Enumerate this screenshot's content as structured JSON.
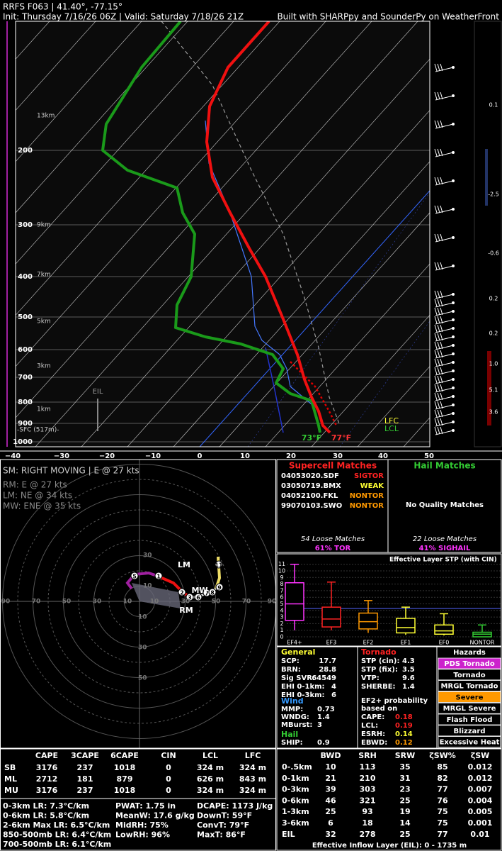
{
  "header": {
    "line1": "RRFS F063 | 41.40°, -77.15°",
    "line2": "Init: Thursday 7/16/26 06Z | Valid: Saturday 7/18/26 21Z",
    "credit": "Built with SHARPpy and SounderPy on WeatherFront"
  },
  "skewt": {
    "pressure_labels": [
      "200",
      "300",
      "400",
      "500",
      "600",
      "700",
      "800",
      "900",
      "1000"
    ],
    "height_labels": [
      "13km",
      "9km",
      "7km",
      "5km",
      "3km",
      "1km",
      "-SFC (517m)-"
    ],
    "temperature_labels": [
      "−40",
      "−30",
      "−20",
      "−10",
      "0",
      "10",
      "20",
      "30",
      "40",
      "50"
    ],
    "eil": "EIL",
    "lfc": "LFC",
    "lcl": "LCL",
    "surface_dewpoint": "73°F",
    "surface_temperature": "77°F",
    "omega_labels": [
      "0.1",
      "-2.5",
      "-0.6",
      "0.2",
      "0.2",
      "1.0",
      "5.1",
      "3.6"
    ]
  },
  "hodograph": {
    "storm_motion": "SM: RIGHT MOVING | E @ 27 kts",
    "right_mover": "RM: E @ 27 kts",
    "left_mover": "LM: NE @ 34 kts",
    "mean_wind": "MW: ENE @ 35 kts",
    "ring_labels_left": [
      "90",
      "70",
      "50",
      "30",
      "10"
    ],
    "ring_labels_right": [
      "10",
      "30",
      "50",
      "70",
      "90"
    ],
    "ring_labels_up": [
      "30",
      "10"
    ],
    "ring_labels_down": [
      "10",
      "30",
      "50"
    ],
    "markers": [
      "LM",
      "MW",
      "RM"
    ],
    "points": [
      "5",
      "1",
      "2",
      "3",
      "6",
      "7",
      "8",
      "9",
      "11"
    ]
  },
  "supercell_matches": {
    "title": "Supercell Matches",
    "rows": [
      [
        "04053020.SDF",
        "SIGTOR"
      ],
      [
        "03050719.BMX",
        "WEAK"
      ],
      [
        "04052100.FKL",
        "NONTOR"
      ],
      [
        "99070103.SWO",
        "NONTOR"
      ]
    ],
    "loose": "54 Loose Matches",
    "probability": "61% TOR"
  },
  "hail_matches": {
    "title": "Hail Matches",
    "message": "No Quality Matches",
    "loose": "22 Loose Matches",
    "probability": "41% SIGHAIL"
  },
  "stp": {
    "title": "Effective Layer STP (with CIN)",
    "yticks": [
      0,
      1,
      2,
      3,
      4,
      5,
      6,
      7,
      8,
      9,
      10,
      11
    ],
    "categories": [
      "EF4+",
      "EF3",
      "EF2",
      "EF1",
      "EF0",
      "NONTOR"
    ]
  },
  "general": {
    "title": "General",
    "rows": [
      [
        "SCP:",
        "17.7"
      ],
      [
        "BRN:",
        "28.8"
      ],
      [
        "Sig SVR:",
        "64549"
      ],
      [
        "EHI 0-1km:",
        "4"
      ],
      [
        "EHI 0-3km:",
        "6"
      ]
    ],
    "wind_title": "Wind",
    "wind_rows": [
      [
        "MMP:",
        "0.73"
      ],
      [
        "WNDG:",
        "1.4"
      ],
      [
        "MBurst:",
        "3"
      ]
    ],
    "hail_title": "Hail",
    "hail_rows": [
      [
        "SHIP:",
        "0.9"
      ]
    ]
  },
  "tornado": {
    "title": "Tornado",
    "rows": [
      [
        "STP (cin):",
        "4.3"
      ],
      [
        "STP (fix):",
        "3.5"
      ],
      [
        "VTP:",
        "9.6"
      ],
      [
        "SHERBE:",
        "1.4"
      ]
    ],
    "ef2_heading": [
      "EF2+ probability",
      "based on"
    ],
    "ef2_rows": [
      [
        "CAPE:",
        "0.18"
      ],
      [
        "LCL:",
        "0.19"
      ],
      [
        "ESRH:",
        "0.14"
      ],
      [
        "EBWD:",
        "0.12"
      ]
    ]
  },
  "hazards": {
    "title": "Hazards",
    "items": [
      "PDS Tornado",
      "Tornado",
      "MRGL Tornado",
      "Severe",
      "MRGL Severe",
      "Flash Flood",
      "Blizzard",
      "Excessive Heat"
    ]
  },
  "parcels": {
    "headers": [
      "CAPE",
      "3CAPE",
      "6CAPE",
      "CIN",
      "LCL",
      "LFC"
    ],
    "rows": [
      [
        "SB",
        "3176",
        "237",
        "1018",
        "0",
        "324 m",
        "324 m"
      ],
      [
        "ML",
        "2712",
        "181",
        "879",
        "0",
        "626 m",
        "843 m"
      ],
      [
        "MU",
        "3176",
        "237",
        "1018",
        "0",
        "324 m",
        "324 m"
      ]
    ]
  },
  "indices": {
    "lapse_rates": [
      "0-3km LR: 7.3°C/km",
      "0-6km LR: 5.8°C/km",
      "2-6km Max LR: 6.5°C/km",
      "850-500mb LR: 6.4°C/km",
      "700-500mb LR: 6.1°C/km"
    ],
    "moisture": [
      "PWAT: 1.75 in",
      "MeanW: 17.6 g/kg",
      "MidRH: 75%",
      "LowRH: 96%"
    ],
    "thermo": [
      "DCAPE: 1173 J/kg",
      "DownT: 59°F",
      "ConvT: 79°F",
      "MaxT: 86°F"
    ]
  },
  "kinematics": {
    "headers": [
      "BWD",
      "SRH",
      "SRW",
      "ζSW%",
      "ζSW"
    ],
    "rows": [
      [
        "0-.5km",
        "10",
        "113",
        "35",
        "85",
        "0.012"
      ],
      [
        "0-1km",
        "21",
        "210",
        "31",
        "82",
        "0.012"
      ],
      [
        "0-3km",
        "39",
        "303",
        "23",
        "77",
        "0.007"
      ],
      [
        "0-6km",
        "46",
        "321",
        "25",
        "76",
        "0.004"
      ],
      [
        "1-3km",
        "25",
        "93",
        "19",
        "75",
        "0.005"
      ],
      [
        "3-6km",
        "6",
        "18",
        "14",
        "75",
        "0.001"
      ],
      [
        "EIL",
        "32",
        "278",
        "25",
        "77",
        "0.01"
      ]
    ],
    "footer": "Effective Inflow Layer (EIL): 0 - 1735 m"
  }
}
